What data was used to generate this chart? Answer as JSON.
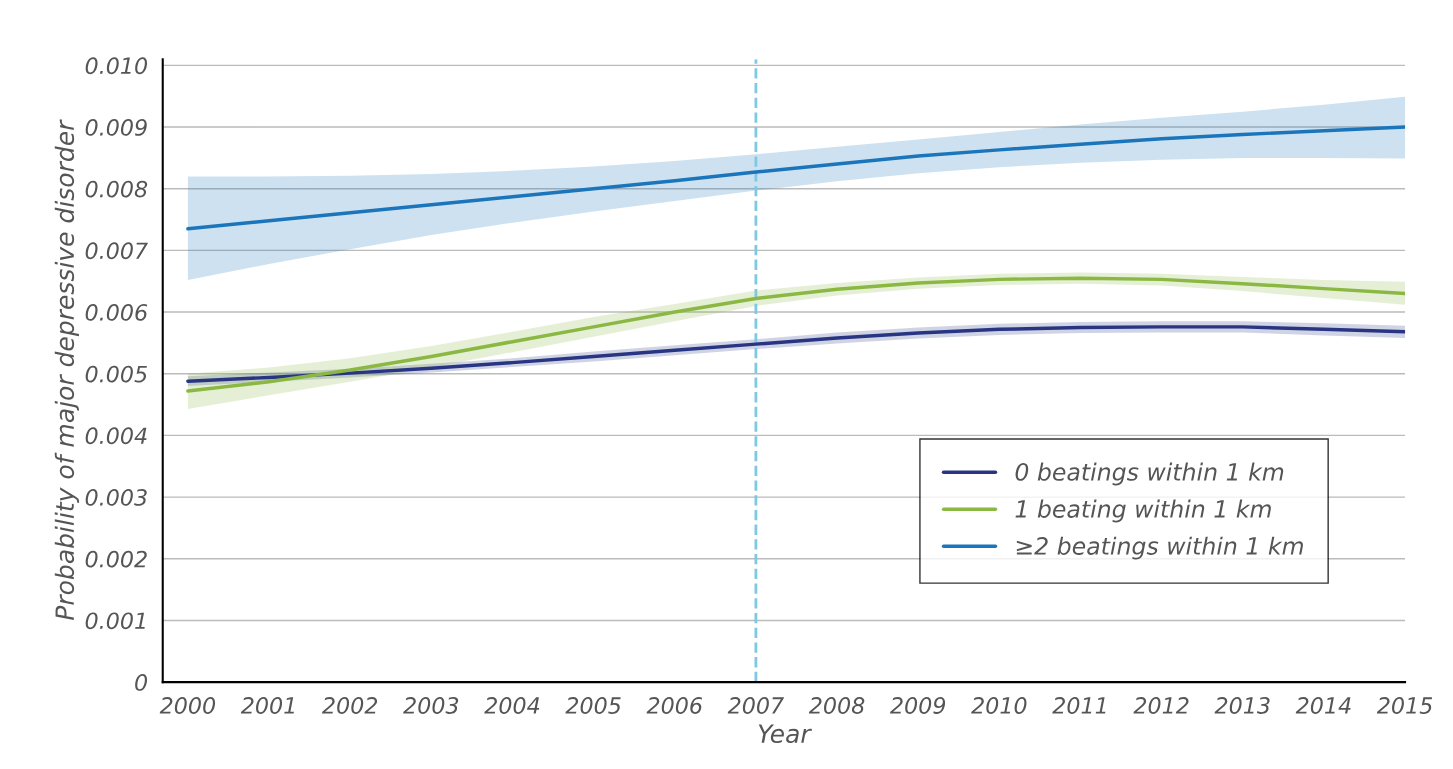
{
  "chart_data": {
    "type": "line",
    "xlabel": "Year",
    "ylabel": "Probability of major depressive disorder",
    "x": [
      2000,
      2001,
      2002,
      2003,
      2004,
      2005,
      2006,
      2007,
      2008,
      2009,
      2010,
      2011,
      2012,
      2013,
      2014,
      2015
    ],
    "series": [
      {
        "name": "0 beatings within 1 km",
        "color": "#283583",
        "values": [
          0.00488,
          0.00494,
          0.00501,
          0.00509,
          0.00518,
          0.00528,
          0.00538,
          0.00548,
          0.00558,
          0.00566,
          0.00572,
          0.00575,
          0.00576,
          0.00576,
          0.00572,
          0.00568
        ],
        "lower": [
          0.0048,
          0.00487,
          0.00494,
          0.00502,
          0.00511,
          0.0052,
          0.0053,
          0.0054,
          0.00549,
          0.00557,
          0.00563,
          0.00566,
          0.00567,
          0.00567,
          0.00562,
          0.00558
        ],
        "upper": [
          0.00496,
          0.00502,
          0.00508,
          0.00516,
          0.00525,
          0.00536,
          0.00546,
          0.00556,
          0.00567,
          0.00575,
          0.00581,
          0.00584,
          0.00585,
          0.00585,
          0.00582,
          0.00578
        ]
      },
      {
        "name": "1 beating within 1 km",
        "color": "#8ab843",
        "values": [
          0.00472,
          0.00487,
          0.00506,
          0.00528,
          0.00552,
          0.00576,
          0.006,
          0.00622,
          0.00637,
          0.00647,
          0.00653,
          0.00655,
          0.00653,
          0.00646,
          0.00638,
          0.0063
        ],
        "lower": [
          0.00443,
          0.00465,
          0.00487,
          0.0051,
          0.00535,
          0.0056,
          0.00585,
          0.0061,
          0.00627,
          0.00638,
          0.00644,
          0.00646,
          0.00643,
          0.00634,
          0.00623,
          0.00612
        ],
        "upper": [
          0.005,
          0.0051,
          0.00525,
          0.00545,
          0.00568,
          0.00592,
          0.00613,
          0.00635,
          0.00647,
          0.00656,
          0.00662,
          0.00664,
          0.00662,
          0.00657,
          0.00652,
          0.00649
        ]
      },
      {
        "name": "≥2 beatings within 1 km",
        "color": "#1a75bb",
        "values": [
          0.00735,
          0.00748,
          0.00761,
          0.00774,
          0.00787,
          0.008,
          0.00813,
          0.00827,
          0.0084,
          0.00853,
          0.00863,
          0.00872,
          0.00881,
          0.00888,
          0.00894,
          0.009
        ],
        "lower": [
          0.00652,
          0.00678,
          0.00702,
          0.00725,
          0.00745,
          0.00763,
          0.0078,
          0.00797,
          0.00812,
          0.00825,
          0.00835,
          0.00842,
          0.00847,
          0.0085,
          0.0085,
          0.00849
        ],
        "upper": [
          0.0082,
          0.0082,
          0.00821,
          0.00824,
          0.00829,
          0.00836,
          0.00845,
          0.00856,
          0.00868,
          0.0088,
          0.00892,
          0.00904,
          0.00915,
          0.00925,
          0.00936,
          0.00949
        ]
      }
    ],
    "xlim": [
      1999.69,
      2015
    ],
    "ylim": [
      0,
      0.0101
    ],
    "xticks": [
      2000,
      2001,
      2002,
      2003,
      2004,
      2005,
      2006,
      2007,
      2008,
      2009,
      2010,
      2011,
      2012,
      2013,
      2014,
      2015
    ],
    "yticks": [
      0,
      0.001,
      0.002,
      0.003,
      0.004,
      0.005,
      0.006,
      0.007,
      0.008,
      0.009,
      {
        "value": 0.01,
        "label": "0.010"
      }
    ],
    "ref_lines": [
      {
        "axis": "x",
        "value": 2007,
        "color": "#7ec8e3",
        "line_style": "dashed"
      }
    ],
    "grid": "y",
    "legend": "bottom right",
    "line_style": "solid",
    "marker": "none"
  }
}
